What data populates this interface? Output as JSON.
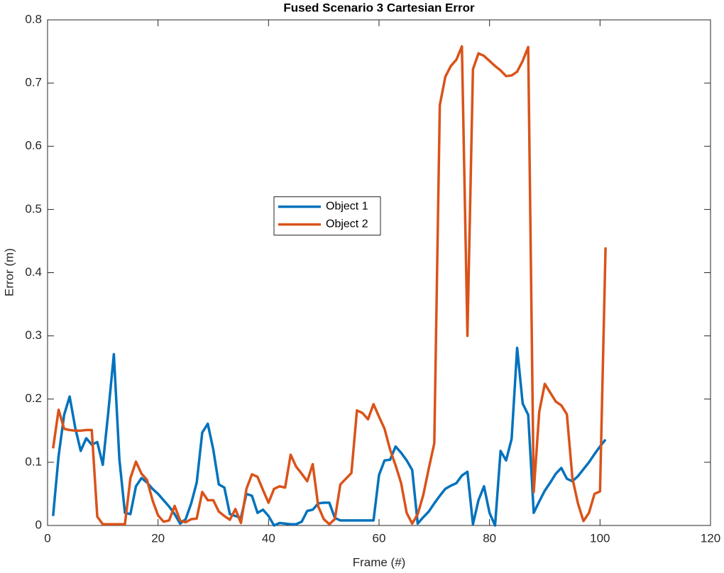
{
  "chart_data": {
    "type": "line",
    "title": "Fused Scenario 3 Cartesian Error",
    "x_label": "Frame (#)",
    "y_label": "Error (m)",
    "x": [
      1,
      2,
      3,
      4,
      5,
      6,
      7,
      8,
      9,
      10,
      11,
      12,
      13,
      14,
      15,
      16,
      17,
      18,
      19,
      20,
      21,
      22,
      23,
      24,
      25,
      26,
      27,
      28,
      29,
      30,
      31,
      32,
      33,
      34,
      35,
      36,
      37,
      38,
      39,
      40,
      41,
      42,
      43,
      44,
      45,
      46,
      47,
      48,
      49,
      50,
      51,
      52,
      53,
      54,
      55,
      56,
      57,
      58,
      59,
      60,
      61,
      62,
      63,
      64,
      65,
      66,
      67,
      68,
      69,
      70,
      71,
      72,
      73,
      74,
      75,
      76,
      77,
      78,
      79,
      80,
      81,
      82,
      83,
      84,
      85,
      86,
      87,
      88,
      89,
      90,
      91,
      92,
      93,
      94,
      95,
      96,
      97,
      98,
      99,
      100,
      101
    ],
    "series": [
      {
        "name": "Object 1",
        "color": "#0072BD",
        "values": [
          0.015,
          0.11,
          0.175,
          0.204,
          0.155,
          0.118,
          0.138,
          0.128,
          0.132,
          0.096,
          0.18,
          0.271,
          0.105,
          0.02,
          0.018,
          0.062,
          0.075,
          0.068,
          0.058,
          0.05,
          0.04,
          0.03,
          0.018,
          0.003,
          0.01,
          0.035,
          0.068,
          0.147,
          0.161,
          0.12,
          0.065,
          0.06,
          0.018,
          0.015,
          0.012,
          0.05,
          0.047,
          0.02,
          0.025,
          0.015,
          0.0,
          0.004,
          0.003,
          0.002,
          0.002,
          0.006,
          0.023,
          0.025,
          0.035,
          0.036,
          0.036,
          0.012,
          0.008,
          0.008,
          0.008,
          0.008,
          0.008,
          0.008,
          0.008,
          0.08,
          0.103,
          0.104,
          0.125,
          0.115,
          0.103,
          0.088,
          0.003,
          0.013,
          0.022,
          0.035,
          0.047,
          0.058,
          0.063,
          0.067,
          0.079,
          0.085,
          0.002,
          0.04,
          0.062,
          0.02,
          0.0,
          0.118,
          0.103,
          0.137,
          0.281,
          0.193,
          0.175,
          0.02,
          0.038,
          0.055,
          0.068,
          0.082,
          0.091,
          0.074,
          0.07,
          0.078,
          0.089,
          0.1,
          0.113,
          0.125,
          0.136
        ]
      },
      {
        "name": "Object 2",
        "color": "#D95319",
        "values": [
          0.122,
          0.183,
          0.153,
          0.151,
          0.15,
          0.15,
          0.151,
          0.151,
          0.014,
          0.002,
          0.002,
          0.002,
          0.002,
          0.002,
          0.075,
          0.101,
          0.082,
          0.072,
          0.04,
          0.016,
          0.006,
          0.008,
          0.031,
          0.008,
          0.005,
          0.01,
          0.011,
          0.053,
          0.04,
          0.04,
          0.022,
          0.015,
          0.009,
          0.026,
          0.004,
          0.058,
          0.081,
          0.077,
          0.056,
          0.036,
          0.058,
          0.062,
          0.06,
          0.112,
          0.093,
          0.082,
          0.07,
          0.097,
          0.03,
          0.01,
          0.002,
          0.01,
          0.065,
          0.074,
          0.083,
          0.182,
          0.178,
          0.168,
          0.192,
          0.172,
          0.153,
          0.12,
          0.095,
          0.067,
          0.02,
          0.003,
          0.018,
          0.048,
          0.09,
          0.13,
          0.665,
          0.71,
          0.727,
          0.737,
          0.758,
          0.3,
          0.722,
          0.747,
          0.743,
          0.735,
          0.727,
          0.72,
          0.711,
          0.712,
          0.718,
          0.735,
          0.757,
          0.053,
          0.18,
          0.224,
          0.21,
          0.196,
          0.19,
          0.176,
          0.075,
          0.035,
          0.007,
          0.02,
          0.05,
          0.054,
          0.44
        ]
      }
    ],
    "xlim": [
      0,
      120
    ],
    "ylim": [
      0,
      0.8
    ],
    "xticks": [
      0,
      20,
      40,
      60,
      80,
      100,
      120
    ],
    "yticks": [
      0,
      0.1,
      0.2,
      0.3,
      0.4,
      0.5,
      0.6,
      0.7,
      0.8
    ],
    "grid": false,
    "legend_position": "center"
  }
}
